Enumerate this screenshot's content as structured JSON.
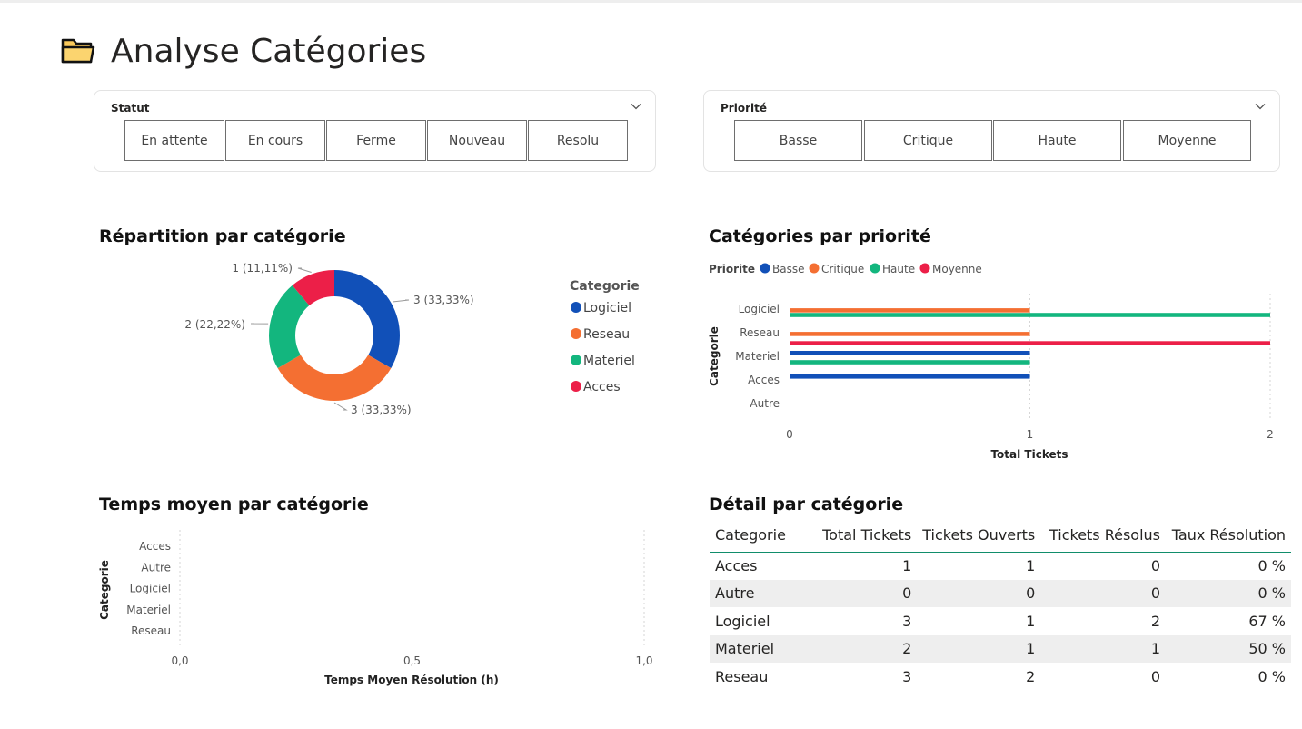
{
  "page": {
    "title": "Analyse Catégories"
  },
  "filters": {
    "statut": {
      "label": "Statut",
      "options": [
        "En attente",
        "En cours",
        "Ferme",
        "Nouveau",
        "Resolu"
      ]
    },
    "priorite": {
      "label": "Priorité",
      "options": [
        "Basse",
        "Critique",
        "Haute",
        "Moyenne"
      ]
    }
  },
  "colors": {
    "logiciel": "#1150B8",
    "reseau": "#F46F32",
    "materiel": "#13B67E",
    "acces": "#EC1F48",
    "basse": "#1150B8",
    "critique": "#F46F32",
    "haute": "#13B67E",
    "moyenne": "#EC1F48",
    "table_accent": "#118d6b"
  },
  "chart_data": [
    {
      "type": "pie",
      "title": "Répartition par catégorie",
      "legend_title": "Categorie",
      "legend_position": "right",
      "slices": [
        {
          "label": "Logiciel",
          "value": 3,
          "data_label": "3 (33,33%)"
        },
        {
          "label": "Reseau",
          "value": 3,
          "data_label": "3 (33,33%)"
        },
        {
          "label": "Materiel",
          "value": 2,
          "data_label": "2 (22,22%)"
        },
        {
          "label": "Acces",
          "value": 1,
          "data_label": "1 (11,11%)"
        }
      ]
    },
    {
      "type": "bar",
      "orientation": "horizontal",
      "title": "Catégories par priorité",
      "legend_title": "Priorite",
      "legend_position": "top-left",
      "categories": [
        "Logiciel",
        "Reseau",
        "Materiel",
        "Acces",
        "Autre"
      ],
      "series": [
        {
          "name": "Basse",
          "values": [
            0,
            0,
            1,
            1,
            0
          ]
        },
        {
          "name": "Critique",
          "values": [
            1,
            1,
            0,
            0,
            0
          ]
        },
        {
          "name": "Haute",
          "values": [
            2,
            0,
            1,
            0,
            0
          ]
        },
        {
          "name": "Moyenne",
          "values": [
            0,
            2,
            0,
            0,
            0
          ]
        }
      ],
      "xlabel": "Total Tickets",
      "ylabel": "Categorie",
      "xlim": [
        0,
        2
      ],
      "xticks": [
        "0",
        "1",
        "2"
      ]
    },
    {
      "type": "bar",
      "orientation": "horizontal",
      "title": "Temps moyen par catégorie",
      "categories": [
        "Acces",
        "Autre",
        "Logiciel",
        "Materiel",
        "Reseau"
      ],
      "values": [
        0,
        0,
        0,
        0,
        0
      ],
      "xlabel": "Temps Moyen Résolution (h)",
      "ylabel": "Categorie",
      "xlim": [
        0,
        1
      ],
      "xticks": [
        "0,0",
        "0,5",
        "1,0"
      ]
    },
    {
      "type": "table",
      "title": "Détail par catégorie",
      "columns": [
        "Categorie",
        "Total Tickets",
        "Tickets Ouverts",
        "Tickets Résolus",
        "Taux Résolution"
      ],
      "rows": [
        [
          "Acces",
          "1",
          "1",
          "0",
          "0 %"
        ],
        [
          "Autre",
          "0",
          "0",
          "0",
          "0 %"
        ],
        [
          "Logiciel",
          "3",
          "1",
          "2",
          "67 %"
        ],
        [
          "Materiel",
          "2",
          "1",
          "1",
          "50 %"
        ],
        [
          "Reseau",
          "3",
          "2",
          "0",
          "0 %"
        ]
      ]
    }
  ]
}
